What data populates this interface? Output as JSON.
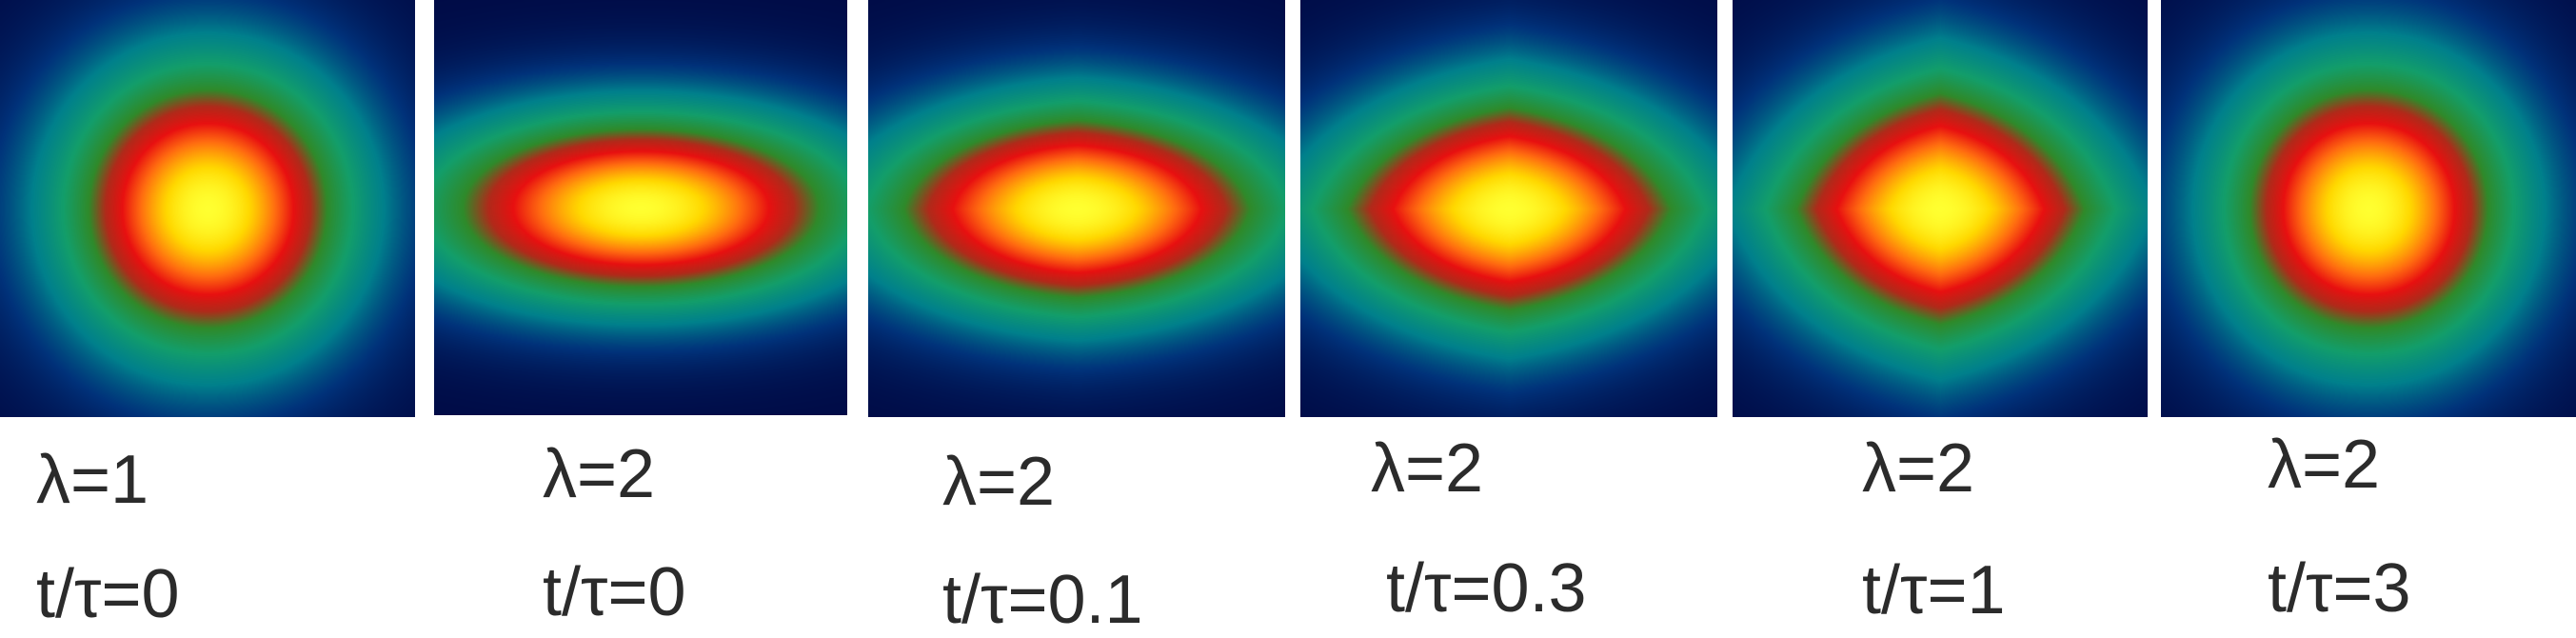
{
  "figure": {
    "colormap": [
      "#000a45",
      "#00327a",
      "#00808c",
      "#139e6a",
      "#2f8a2a",
      "#b02a1a",
      "#e81010",
      "#ff6a10",
      "#ffd800",
      "#ffff30"
    ],
    "panels": [
      {
        "lambda_label": "λ=1",
        "time_label": "t/τ=0",
        "lambda": 1,
        "t_over_tau": 0,
        "aspect_ratio": 1.0,
        "edge_sharpness": 0.0
      },
      {
        "lambda_label": "λ=2",
        "time_label": "t/τ=0",
        "lambda": 2,
        "t_over_tau": 0,
        "aspect_ratio": 2.25,
        "edge_sharpness": 0.0
      },
      {
        "lambda_label": "λ=2",
        "time_label": "t/τ=0.1",
        "lambda": 2,
        "t_over_tau": 0.1,
        "aspect_ratio": 1.95,
        "edge_sharpness": 0.45
      },
      {
        "lambda_label": "λ=2",
        "time_label": "t/τ=0.3",
        "lambda": 2,
        "t_over_tau": 0.3,
        "aspect_ratio": 1.6,
        "edge_sharpness": 0.85
      },
      {
        "lambda_label": "λ=2",
        "time_label": "t/τ=1",
        "lambda": 2,
        "t_over_tau": 1,
        "aspect_ratio": 1.25,
        "edge_sharpness": 1.0
      },
      {
        "lambda_label": "λ=2",
        "time_label": "t/τ=3",
        "lambda": 2,
        "t_over_tau": 3,
        "aspect_ratio": 1.0,
        "edge_sharpness": 0.0
      }
    ]
  }
}
